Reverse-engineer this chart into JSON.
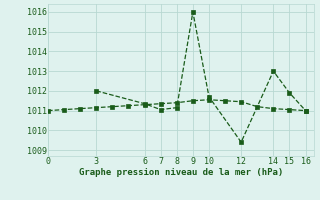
{
  "title": "Graphe pression niveau de la mer (hPa)",
  "background_color": "#dff2ee",
  "grid_color": "#b8d8d2",
  "line_color": "#1a5c1a",
  "marker_color": "#1a5c1a",
  "series1_x": [
    0,
    1,
    2,
    3,
    4,
    5,
    6,
    7,
    8,
    9,
    10,
    11,
    12,
    13,
    14,
    15,
    16
  ],
  "series1_y": [
    1011.0,
    1011.05,
    1011.1,
    1011.15,
    1011.2,
    1011.25,
    1011.3,
    1011.35,
    1011.4,
    1011.5,
    1011.55,
    1011.5,
    1011.45,
    1011.2,
    1011.1,
    1011.05,
    1011.0
  ],
  "series2_x": [
    3,
    6,
    7,
    8,
    9,
    10,
    12,
    14,
    15,
    16
  ],
  "series2_y": [
    1012.0,
    1011.35,
    1011.05,
    1011.15,
    1016.0,
    1011.7,
    1009.4,
    1013.0,
    1011.9,
    1011.0
  ],
  "xticks": [
    0,
    3,
    6,
    7,
    8,
    9,
    10,
    12,
    14,
    15,
    16
  ],
  "yticks": [
    1009,
    1010,
    1011,
    1012,
    1013,
    1014,
    1015,
    1016
  ],
  "xlim": [
    0,
    16.5
  ],
  "ylim": [
    1008.7,
    1016.4
  ],
  "title_fontsize": 6.5,
  "tick_fontsize": 6.0,
  "tick_color": "#1a5c1a"
}
